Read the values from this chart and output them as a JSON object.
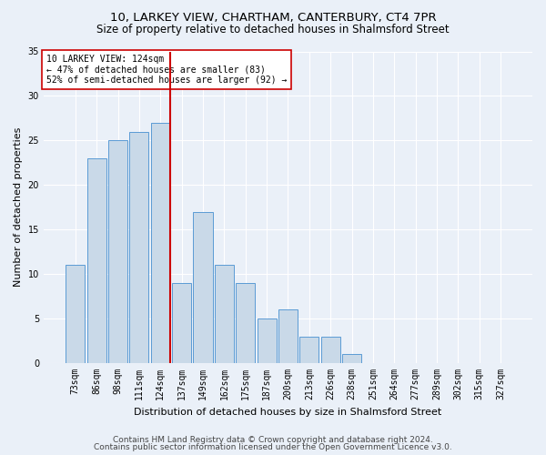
{
  "title1": "10, LARKEY VIEW, CHARTHAM, CANTERBURY, CT4 7PR",
  "title2": "Size of property relative to detached houses in Shalmsford Street",
  "xlabel": "Distribution of detached houses by size in Shalmsford Street",
  "ylabel": "Number of detached properties",
  "categories": [
    "73sqm",
    "86sqm",
    "98sqm",
    "111sqm",
    "124sqm",
    "137sqm",
    "149sqm",
    "162sqm",
    "175sqm",
    "187sqm",
    "200sqm",
    "213sqm",
    "226sqm",
    "238sqm",
    "251sqm",
    "264sqm",
    "277sqm",
    "289sqm",
    "302sqm",
    "315sqm",
    "327sqm"
  ],
  "values": [
    11,
    23,
    25,
    26,
    27,
    9,
    17,
    11,
    9,
    5,
    6,
    3,
    3,
    1,
    0,
    0,
    0,
    0,
    0,
    0,
    0
  ],
  "bar_color": "#c9d9e8",
  "bar_edge_color": "#5b9bd5",
  "red_line_index": 4,
  "annotation_lines": [
    "10 LARKEY VIEW: 124sqm",
    "← 47% of detached houses are smaller (83)",
    "52% of semi-detached houses are larger (92) →"
  ],
  "annotation_box_color": "#ffffff",
  "annotation_box_edge": "#cc0000",
  "red_line_color": "#cc0000",
  "ylim": [
    0,
    35
  ],
  "yticks": [
    0,
    5,
    10,
    15,
    20,
    25,
    30,
    35
  ],
  "footnote1": "Contains HM Land Registry data © Crown copyright and database right 2024.",
  "footnote2": "Contains public sector information licensed under the Open Government Licence v3.0.",
  "bg_color": "#eaf0f8",
  "grid_color": "#ffffff",
  "title1_fontsize": 9.5,
  "title2_fontsize": 8.5,
  "xlabel_fontsize": 8,
  "ylabel_fontsize": 8,
  "footnote_fontsize": 6.5,
  "tick_fontsize": 7,
  "annot_fontsize": 7
}
